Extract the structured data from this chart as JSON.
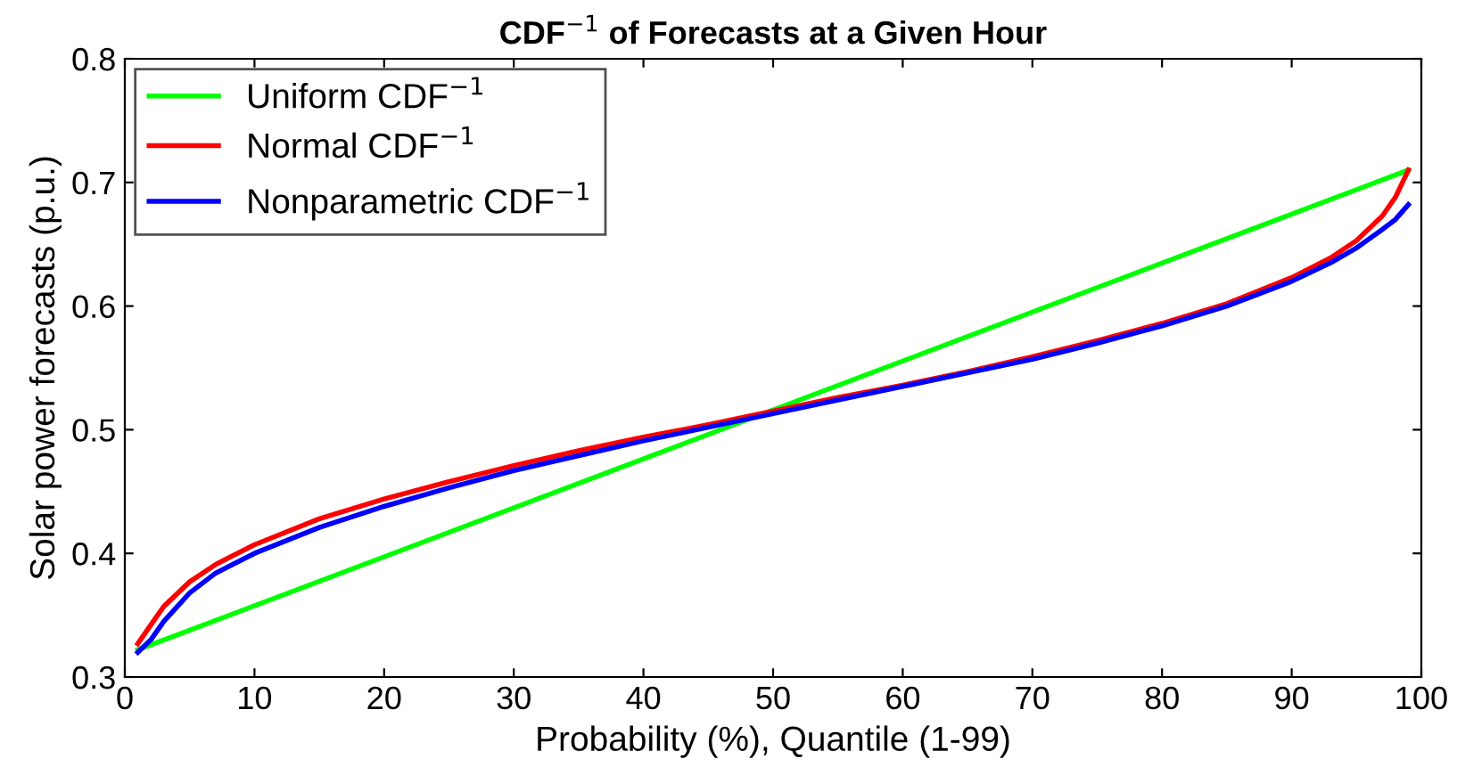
{
  "chart_data": {
    "type": "line",
    "title": "CDF$^{−1}$ of Forecasts at a Given Hour",
    "xlabel": "Probability (%), Quantile (1-99)",
    "ylabel": "Solar power forecasts (p.u.)",
    "x": [
      1,
      2,
      3,
      5,
      7,
      10,
      15,
      20,
      25,
      30,
      35,
      40,
      45,
      50,
      55,
      60,
      65,
      70,
      75,
      80,
      85,
      90,
      93,
      95,
      97,
      98,
      99
    ],
    "series": [
      {
        "name": "Uniform CDF$^{−1}$",
        "color": "#00ff00",
        "x": [
          1,
          99
        ],
        "values": [
          0.322,
          0.71
        ]
      },
      {
        "name": "Normal CDF$^{−1}$",
        "color": "#ff0000",
        "values": [
          0.327,
          0.342,
          0.357,
          0.377,
          0.391,
          0.407,
          0.428,
          0.444,
          0.458,
          0.471,
          0.483,
          0.494,
          0.504,
          0.515,
          0.526,
          0.536,
          0.547,
          0.559,
          0.572,
          0.586,
          0.602,
          0.623,
          0.639,
          0.653,
          0.673,
          0.688,
          0.71
        ]
      },
      {
        "name": "Nonparametric CDF$^{−1}$",
        "color": "#0000ff",
        "values": [
          0.32,
          0.33,
          0.345,
          0.368,
          0.384,
          0.4,
          0.421,
          0.438,
          0.453,
          0.467,
          0.479,
          0.491,
          0.502,
          0.513,
          0.524,
          0.535,
          0.546,
          0.557,
          0.57,
          0.584,
          0.6,
          0.62,
          0.635,
          0.647,
          0.662,
          0.67,
          0.682
        ]
      }
    ],
    "xlim": [
      0,
      100
    ],
    "xticks": [
      0,
      10,
      20,
      30,
      40,
      50,
      60,
      70,
      80,
      90,
      100
    ],
    "ylim": [
      0.3,
      0.8
    ],
    "yticks": [
      0.3,
      0.4,
      0.5,
      0.6,
      0.7,
      0.8
    ],
    "grid": false,
    "legend": "top left",
    "marker": "none",
    "line_style": "solid"
  }
}
